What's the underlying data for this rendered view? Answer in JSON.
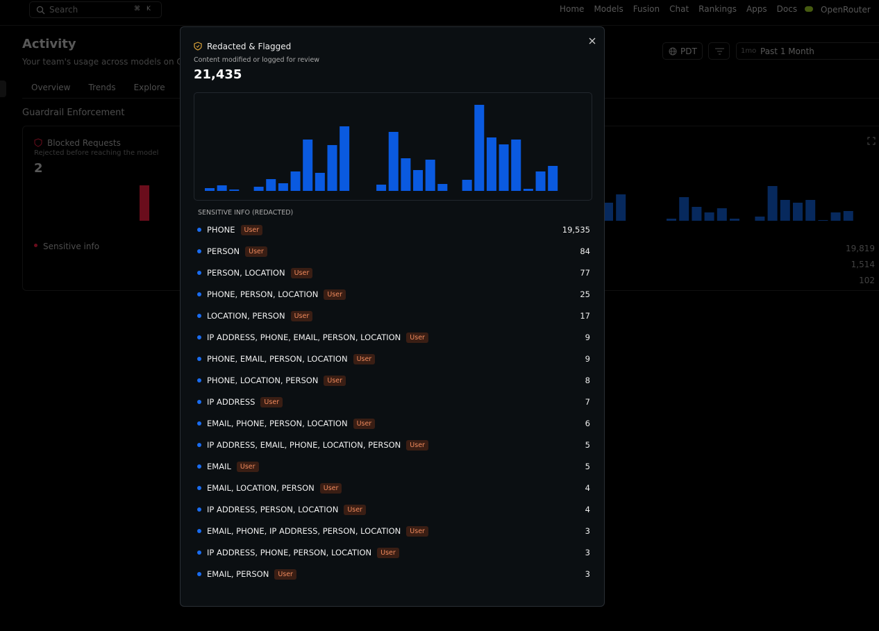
{
  "nav": {
    "search": "Search",
    "shortcut": [
      "⌘",
      "K"
    ],
    "links": [
      "Home",
      "Models",
      "Fusion",
      "Chat",
      "Rankings",
      "Apps",
      "Docs"
    ],
    "account": "OpenRouter"
  },
  "page": {
    "title": "Activity",
    "subtitle": "Your team's usage across models on Open",
    "tabs": [
      "Overview",
      "Trends",
      "Explore",
      "G"
    ],
    "timezone": "PDT",
    "range_short": "1mo",
    "range": "Past 1 Month",
    "section": "Guardrail Enforcement",
    "blocked_card": {
      "title": "Blocked Requests",
      "subtitle": "Rejected before reaching the model",
      "total": "2",
      "legend": "Sensitive info",
      "chart": {
        "type": "bar",
        "color": "#a3142c",
        "values": [
          2
        ]
      }
    },
    "redacted_card": {
      "chart": {
        "type": "bar",
        "color": "#0b3f8f",
        "values": [
          1300,
          1900,
          null,
          null,
          null,
          150,
          1700,
          1000,
          600,
          900,
          150,
          null,
          300,
          2500,
          1500,
          1300,
          1500,
          50,
          600,
          700
        ]
      },
      "counts": [
        "19,819",
        "1,514",
        "102"
      ]
    }
  },
  "modal": {
    "title": "Redacted & Flagged",
    "subtitle": "Content modified or logged for review",
    "total": "21,435",
    "chart_data": {
      "type": "bar",
      "color": "#0a5ae0",
      "values": [
        87,
        174,
        43,
        null,
        130,
        369,
        239,
        608,
        1607,
        565,
        1434,
        2020,
        null,
        null,
        196,
        1846,
        1021,
        652,
        977,
        217,
        null,
        347,
        2693,
        1672,
        1455,
        1607,
        65,
        608,
        782
      ]
    },
    "section": "SENSITIVE INFO (REDACTED)",
    "rows": [
      {
        "label": "PHONE",
        "tag": "User",
        "count": "19,535"
      },
      {
        "label": "PERSON",
        "tag": "User",
        "count": "84"
      },
      {
        "label": "PERSON, LOCATION",
        "tag": "User",
        "count": "77"
      },
      {
        "label": "PHONE, PERSON, LOCATION",
        "tag": "User",
        "count": "25"
      },
      {
        "label": "LOCATION, PERSON",
        "tag": "User",
        "count": "17"
      },
      {
        "label": "IP ADDRESS, PHONE, EMAIL, PERSON, LOCATION",
        "tag": "User",
        "count": "9"
      },
      {
        "label": "PHONE, EMAIL, PERSON, LOCATION",
        "tag": "User",
        "count": "9"
      },
      {
        "label": "PHONE, LOCATION, PERSON",
        "tag": "User",
        "count": "8"
      },
      {
        "label": "IP ADDRESS",
        "tag": "User",
        "count": "7"
      },
      {
        "label": "EMAIL, PHONE, PERSON, LOCATION",
        "tag": "User",
        "count": "6"
      },
      {
        "label": "IP ADDRESS, EMAIL, PHONE, LOCATION, PERSON",
        "tag": "User",
        "count": "5"
      },
      {
        "label": "EMAIL",
        "tag": "User",
        "count": "5"
      },
      {
        "label": "EMAIL, LOCATION, PERSON",
        "tag": "User",
        "count": "4"
      },
      {
        "label": "IP ADDRESS, PERSON, LOCATION",
        "tag": "User",
        "count": "4"
      },
      {
        "label": "EMAIL, PHONE, IP ADDRESS, PERSON, LOCATION",
        "tag": "User",
        "count": "3"
      },
      {
        "label": "IP ADDRESS, PHONE, PERSON, LOCATION",
        "tag": "User",
        "count": "3"
      },
      {
        "label": "EMAIL, PERSON",
        "tag": "User",
        "count": "3"
      }
    ]
  }
}
